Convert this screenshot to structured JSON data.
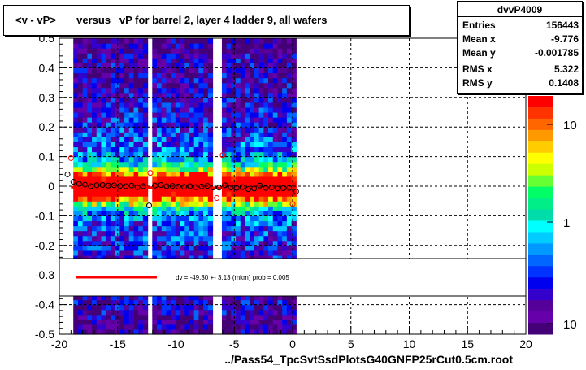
{
  "title": "<v - vP>       versus   vP for barrel 2, layer 4 ladder 9, all wafers",
  "x_title": "../Pass54_TpcSvtSsdPlotsG40GNFP25rCut0.5cm.root",
  "stats": {
    "name": "dvvP4009",
    "rows": [
      {
        "label": "Entries",
        "value": "156443"
      },
      {
        "label": "Mean x",
        "value": "-9.776"
      },
      {
        "label": "Mean y",
        "value": "-0.001785"
      },
      {
        "label": "RMS x",
        "value": "5.322"
      },
      {
        "label": "RMS y",
        "value": "0.1408"
      }
    ]
  },
  "legend": {
    "text": "dv =  -49.30 +-  3.13 (mkm) prob = 0.005",
    "line_color": "#ff0000"
  },
  "colors": {
    "fit_line": "#ff0000",
    "profile_marker": "#000000",
    "profile_marker_alt": "#ff0000"
  },
  "chart_data": {
    "type": "heatmap",
    "xlim": [
      -20,
      20
    ],
    "ylim": [
      -0.5,
      0.5
    ],
    "x_ticks": [
      -20,
      -15,
      -10,
      -5,
      0,
      5,
      10,
      15,
      20
    ],
    "x_tick_labels": [
      "-20",
      "-15",
      "-10",
      "-5",
      "0",
      "5",
      "10",
      "15",
      "20"
    ],
    "y_ticks": [
      0.5,
      0.4,
      0.3,
      0.2,
      0.1,
      0,
      -0.1,
      -0.2,
      -0.3,
      -0.4,
      -0.5
    ],
    "y_tick_labels": [
      "0.5",
      "0.4",
      "0.3",
      "0.2",
      "0.1",
      "0",
      "-0.1",
      "-0.2",
      "-0.3",
      "-0.4",
      "-0.5"
    ],
    "grid": true,
    "occupied_x_range": [
      -18.8,
      0.3
    ],
    "empty_x_columns": [
      -12.3,
      -6.5
    ],
    "color_scale": {
      "type": "log",
      "tick_labels": [
        "10",
        "1",
        "10"
      ],
      "tick_values": [
        10,
        1,
        10
      ],
      "palette": [
        "#ff0000",
        "#ff3300",
        "#ff6600",
        "#ff9900",
        "#ffcc00",
        "#ffff00",
        "#ccff00",
        "#66ff33",
        "#00ff66",
        "#00ee88",
        "#00ddaa",
        "#00ffff",
        "#00ccff",
        "#0099ff",
        "#0066ff",
        "#0033ff",
        "#0000ee",
        "#3300cc",
        "#550099",
        "#6600aa",
        "#440077"
      ]
    },
    "fit_line": {
      "y_at_xmin": -0.0033,
      "y_at_xmax": -0.0066,
      "x_range": [
        -19,
        0
      ]
    },
    "profile_points": [
      {
        "x": -19.3,
        "y": 0.04
      },
      {
        "x": -18.8,
        "y": 0.015
      },
      {
        "x": -18.3,
        "y": 0.008
      },
      {
        "x": -17.8,
        "y": 0.005
      },
      {
        "x": -17.3,
        "y": 0.0
      },
      {
        "x": -16.8,
        "y": 0.003
      },
      {
        "x": -16.3,
        "y": 0.004
      },
      {
        "x": -15.8,
        "y": 0.002
      },
      {
        "x": -15.3,
        "y": 0.003
      },
      {
        "x": -14.8,
        "y": 0.001
      },
      {
        "x": -14.3,
        "y": 0.0
      },
      {
        "x": -13.8,
        "y": 0.002
      },
      {
        "x": -13.3,
        "y": -0.003
      },
      {
        "x": -12.8,
        "y": 0.0
      },
      {
        "x": -12.3,
        "y": -0.065
      },
      {
        "x": -11.8,
        "y": 0.002
      },
      {
        "x": -11.3,
        "y": 0.004
      },
      {
        "x": -10.8,
        "y": 0.0
      },
      {
        "x": -10.3,
        "y": 0.001
      },
      {
        "x": -9.8,
        "y": -0.001
      },
      {
        "x": -9.3,
        "y": -0.002
      },
      {
        "x": -8.8,
        "y": 0.0
      },
      {
        "x": -8.3,
        "y": -0.003
      },
      {
        "x": -7.8,
        "y": -0.001
      },
      {
        "x": -7.3,
        "y": 0.001
      },
      {
        "x": -6.8,
        "y": -0.004
      },
      {
        "x": -6.3,
        "y": -0.005
      },
      {
        "x": -5.8,
        "y": 0.003
      },
      {
        "x": -5.3,
        "y": -0.004
      },
      {
        "x": -4.8,
        "y": -0.006
      },
      {
        "x": -4.3,
        "y": -0.003
      },
      {
        "x": -3.8,
        "y": -0.01
      },
      {
        "x": -3.3,
        "y": -0.008
      },
      {
        "x": -2.8,
        "y": 0.002
      },
      {
        "x": -2.3,
        "y": -0.006
      },
      {
        "x": -1.8,
        "y": -0.004
      },
      {
        "x": -1.3,
        "y": -0.008
      },
      {
        "x": -0.8,
        "y": -0.007
      },
      {
        "x": -0.3,
        "y": -0.006
      },
      {
        "x": 0.3,
        "y": -0.018
      }
    ],
    "profile_points_alt": [
      {
        "x": -19.0,
        "y": 0.095
      },
      {
        "x": -12.2,
        "y": 0.045
      },
      {
        "x": -6.5,
        "y": -0.04
      },
      {
        "x": -6.0,
        "y": 0.105
      },
      {
        "x": -2.6,
        "y": 0.02
      },
      {
        "x": 0.0,
        "y": -0.06
      }
    ]
  }
}
